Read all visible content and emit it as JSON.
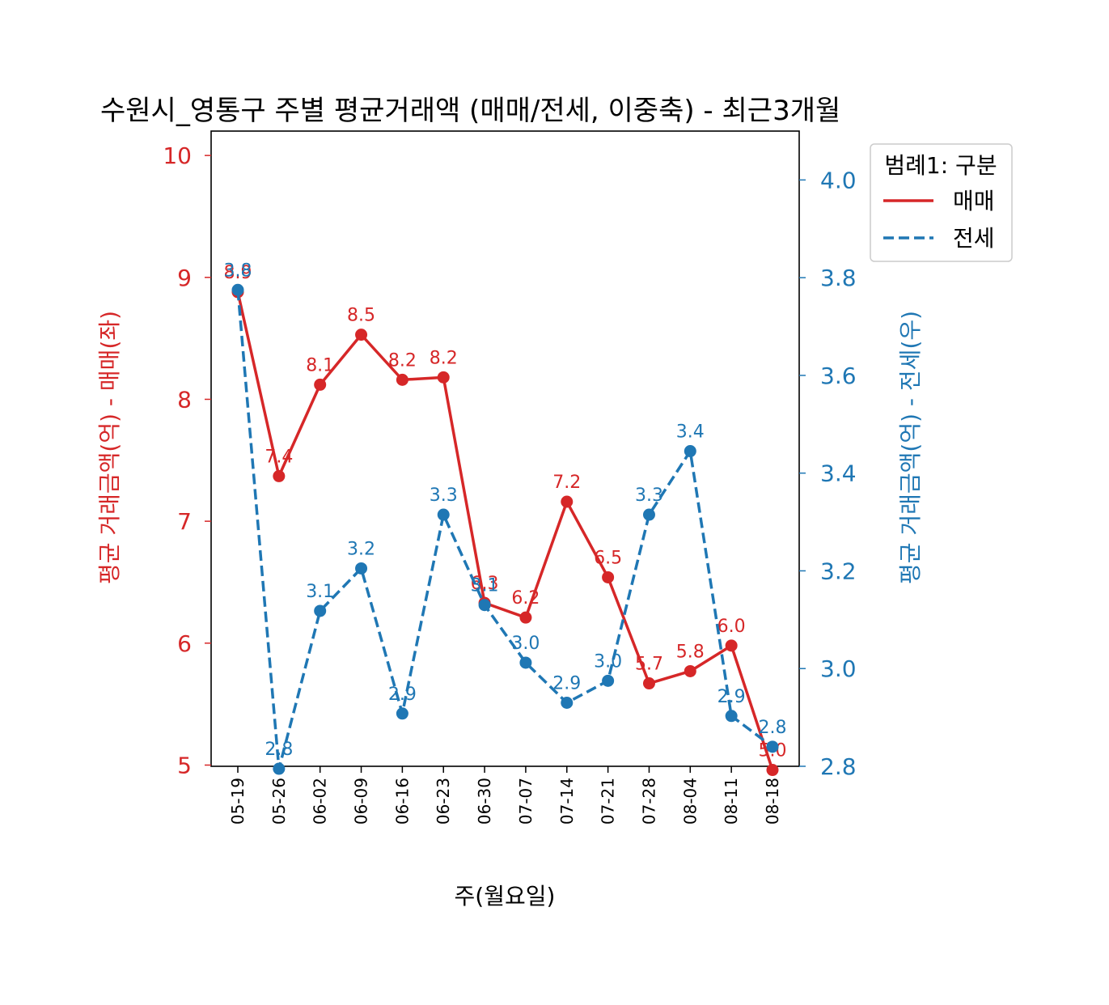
{
  "chart_data": {
    "type": "line",
    "title": "수원시_영통구 주별 평균거래액 (매매/전세, 이중축) - 최근3개월",
    "xlabel": "주(월요일)",
    "ylabel_left": "평균 거래금액(억) - 매매(좌)",
    "ylabel_right": "평균 거래금액(억) - 전세(우)",
    "categories": [
      "05-19",
      "05-26",
      "06-02",
      "06-09",
      "06-16",
      "06-23",
      "06-30",
      "07-07",
      "07-14",
      "07-21",
      "07-28",
      "08-04",
      "08-11",
      "08-18"
    ],
    "ylim_left": [
      4.99,
      10.2
    ],
    "ylim_right": [
      2.8,
      4.1
    ],
    "yticks_left": [
      5,
      6,
      7,
      8,
      9,
      10
    ],
    "yticks_right": [
      2.8,
      3.0,
      3.2,
      3.4,
      3.6,
      3.8,
      4.0
    ],
    "grid": false,
    "legend": {
      "title": "범례1: 구분",
      "placement": "outside-top-right"
    },
    "series": [
      {
        "name": "매매",
        "axis": "left",
        "color": "#d62728",
        "dash": "solid",
        "values": [
          8.88,
          7.37,
          8.12,
          8.53,
          8.16,
          8.18,
          6.33,
          6.21,
          7.16,
          6.54,
          5.67,
          5.77,
          5.98,
          4.96
        ],
        "labels": [
          "8.9",
          "7.4",
          "8.1",
          "8.5",
          "8.2",
          "8.2",
          "6.3",
          "6.2",
          "7.2",
          "6.5",
          "5.7",
          "5.8",
          "6.0",
          "5.0"
        ]
      },
      {
        "name": "전세",
        "axis": "right",
        "color": "#1f77b4",
        "dash": "dashed",
        "values": [
          3.775,
          2.795,
          3.118,
          3.205,
          2.908,
          3.315,
          3.13,
          3.012,
          2.93,
          2.975,
          3.315,
          3.445,
          2.903,
          2.84
        ],
        "labels": [
          "3.8",
          "2.8",
          "3.1",
          "3.2",
          "2.9",
          "3.3",
          "3.1",
          "3.0",
          "2.9",
          "3.0",
          "3.3",
          "3.4",
          "2.9",
          "2.8"
        ]
      }
    ]
  }
}
